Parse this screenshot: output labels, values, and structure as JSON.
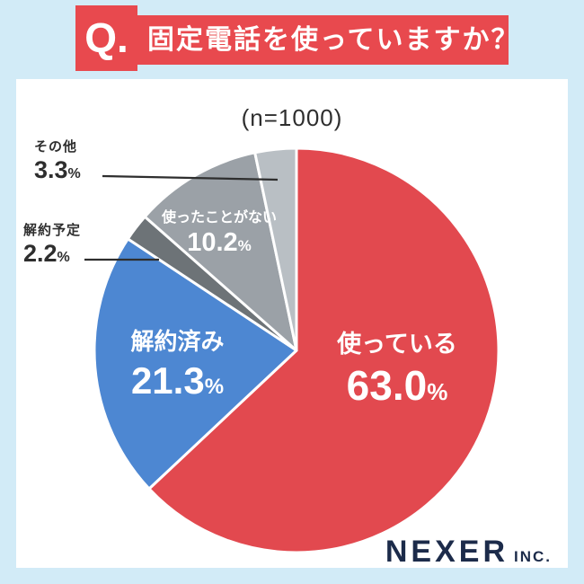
{
  "header": {
    "q_label": "Q.",
    "title": "固定電話を使っていますか？"
  },
  "survey": {
    "sample_label": "(n=1000)"
  },
  "ui": {
    "percent": "%"
  },
  "chart_data": {
    "type": "pie",
    "title": "固定電話を使っていますか？",
    "sample_size_label": "(n=1000)",
    "direction": "clockwise",
    "start_angle_deg": 0,
    "legend_position": "none",
    "segments": [
      {
        "label": "使っている",
        "value": 63.0,
        "display": "63.0",
        "color": "#e2494f",
        "label_position": "inside"
      },
      {
        "label": "解約済み",
        "value": 21.3,
        "display": "21.3",
        "color": "#4d87d2",
        "label_position": "inside"
      },
      {
        "label": "解約予定",
        "value": 2.2,
        "display": "2.2",
        "color": "#6d7377",
        "label_position": "outside-left"
      },
      {
        "label": "使ったことがない",
        "value": 10.2,
        "display": "10.2",
        "color": "#9ba1a7",
        "label_position": "inside"
      },
      {
        "label": "その他",
        "value": 3.3,
        "display": "3.3",
        "color": "#b9bfc4",
        "label_position": "outside-left"
      }
    ]
  },
  "logo": {
    "brand": "NEXER",
    "suffix": "INC."
  }
}
